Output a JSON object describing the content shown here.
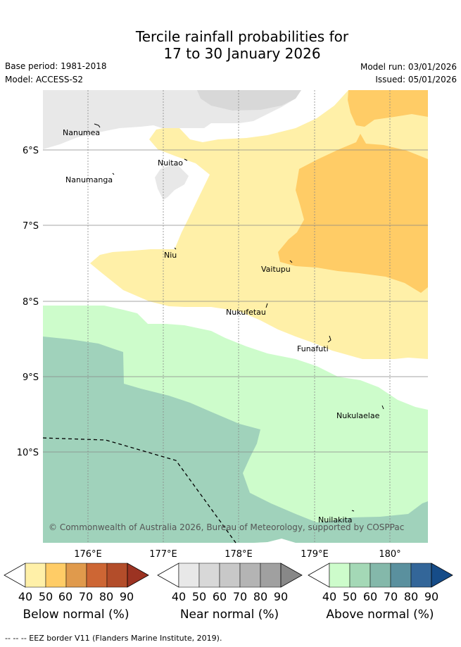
{
  "title_line1": "Tercile rainfall probabilities for",
  "title_line2": "17 to 30 January 2026",
  "base_period": "Base period: 1981-2018",
  "model": "Model: ACCESS-S2",
  "model_run": "Model run: 03/01/2026",
  "issued": "Issued: 05/01/2026",
  "map": {
    "lat_labels": [
      "6°S",
      "7°S",
      "8°S",
      "9°S",
      "10°S"
    ],
    "lon_labels": [
      "176°E",
      "177°E",
      "178°E",
      "179°E",
      "180°"
    ],
    "places": [
      "Nanumea",
      "Nuitao",
      "Nanumanga",
      "Niu",
      "Vaitupu",
      "Nukufetau",
      "Funafuti",
      "Nukulaelae",
      "Nuilakita"
    ],
    "copyright": "© Commonwealth of Australia 2026, Bureau of Meteorology, supported by COSPPac"
  },
  "colorbars": [
    {
      "title": "Below normal (%)",
      "colors": [
        "#fff0a8",
        "#ffcc66",
        "#e09a4c",
        "#cd6634",
        "#b34d2a",
        "#9c3322"
      ]
    },
    {
      "title": "Near normal (%)",
      "colors": [
        "#e8e8e8",
        "#d8d8d8",
        "#c8c8c8",
        "#b4b4b4",
        "#a0a0a0",
        "#888888"
      ]
    },
    {
      "title": "Above normal (%)",
      "colors": [
        "#cdfccb",
        "#a4d8b6",
        "#84b8aa",
        "#5a909e",
        "#336699",
        "#164c88"
      ]
    }
  ],
  "ticks": [
    "40",
    "50",
    "60",
    "70",
    "80",
    "90"
  ],
  "footer": "--  --  -- EEZ border V11 (Flanders Marine Institute, 2019)."
}
